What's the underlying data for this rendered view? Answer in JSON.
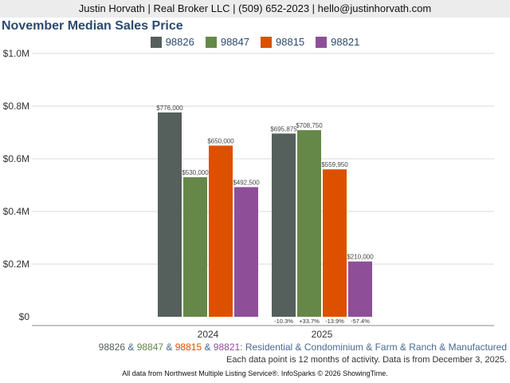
{
  "header": "Justin Horvath | Real Broker LLC | (509) 652-2023 | hello@justinhorvath.com",
  "chart_data": {
    "type": "bar",
    "title": "November Median Sales Price",
    "categories": [
      "2024",
      "2025"
    ],
    "series": [
      {
        "name": "98826",
        "color": "#555f5b",
        "values": [
          776000,
          695875
        ],
        "labels": [
          "$776,000",
          "$695,875"
        ]
      },
      {
        "name": "98847",
        "color": "#658849",
        "values": [
          530000,
          708750
        ],
        "labels": [
          "$530,000",
          "$708,750"
        ]
      },
      {
        "name": "98815",
        "color": "#dd5000",
        "values": [
          650000,
          559950
        ],
        "labels": [
          "$650,000",
          "$559,950"
        ]
      },
      {
        "name": "98821",
        "color": "#8e4f98",
        "values": [
          492500,
          210000
        ],
        "labels": [
          "$492,500",
          "$210,000"
        ]
      }
    ],
    "changes": [
      "-10.3%",
      "+33.7%",
      "-13.9%",
      "-57.4%"
    ],
    "ylim": [
      0,
      1000000
    ],
    "yticks": [
      0,
      200000,
      400000,
      600000,
      800000,
      1000000
    ],
    "ytick_labels": [
      "$0",
      "$0.2M",
      "$0.4M",
      "$0.6M",
      "$0.8M",
      "$1.0M"
    ],
    "legend": "top-center",
    "grid": true
  },
  "subtitle": {
    "zips": [
      "98826",
      "98847",
      "98815",
      "98821"
    ],
    "sep": " & ",
    "suffix": ": Residential & Condominium & Farm & Ranch & Manufactured"
  },
  "note": "Each data point is 12 months of activity. Data is from December 3, 2025.",
  "footer": "All data from Northwest Multiple Listing Service®. InfoSparks © 2026 ShowingTime."
}
